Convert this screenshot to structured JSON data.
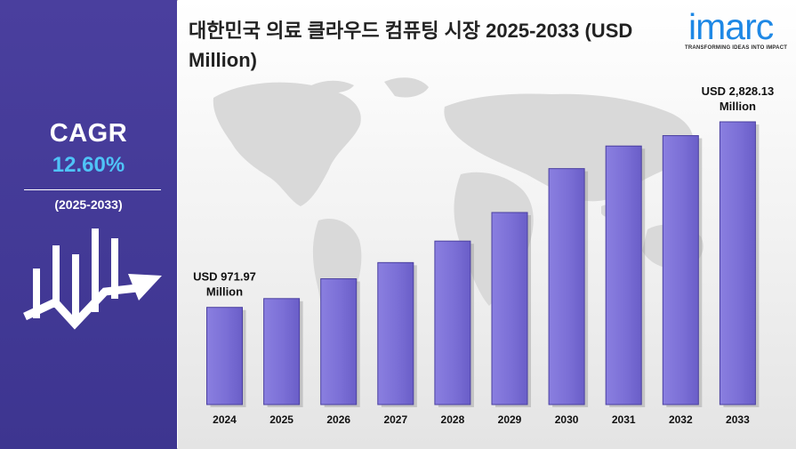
{
  "title": "대한민국 의료 클라우드 컴퓨팅 시장 2025-2033 (USD Million)",
  "brand": {
    "logo_text": "imarc",
    "tagline": "TRANSFORMING IDEAS INTO IMPACT",
    "color": "#1e88e5"
  },
  "sidebar": {
    "cagr_label": "CAGR",
    "cagr_value": "12.60%",
    "period": "(2025-2033)",
    "icon": "growth-chart-arrow-icon",
    "colors": {
      "panel": "#3f3793",
      "value": "#4fc3f7"
    }
  },
  "chart_data": {
    "type": "bar",
    "title": "대한민국 의료 클라우드 컴퓨팅 시장 2025-2033 (USD Million)",
    "xlabel": "",
    "ylabel": "",
    "categories": [
      "2024",
      "2025",
      "2026",
      "2027",
      "2028",
      "2029",
      "2030",
      "2031",
      "2032",
      "2033"
    ],
    "values": [
      971.97,
      1060,
      1258,
      1420,
      1635,
      1921,
      2360,
      2586,
      2690,
      2828.13
    ],
    "ylim": [
      0,
      3000
    ],
    "grid": false,
    "bar_color": "#7b6fd6",
    "bar_edge_color": "#4a3fa0",
    "annotations": [
      {
        "index": 0,
        "line1": "USD 971.97",
        "line2": "Million"
      },
      {
        "index": 9,
        "line1": "USD 2,828.13",
        "line2": "Million"
      }
    ]
  }
}
